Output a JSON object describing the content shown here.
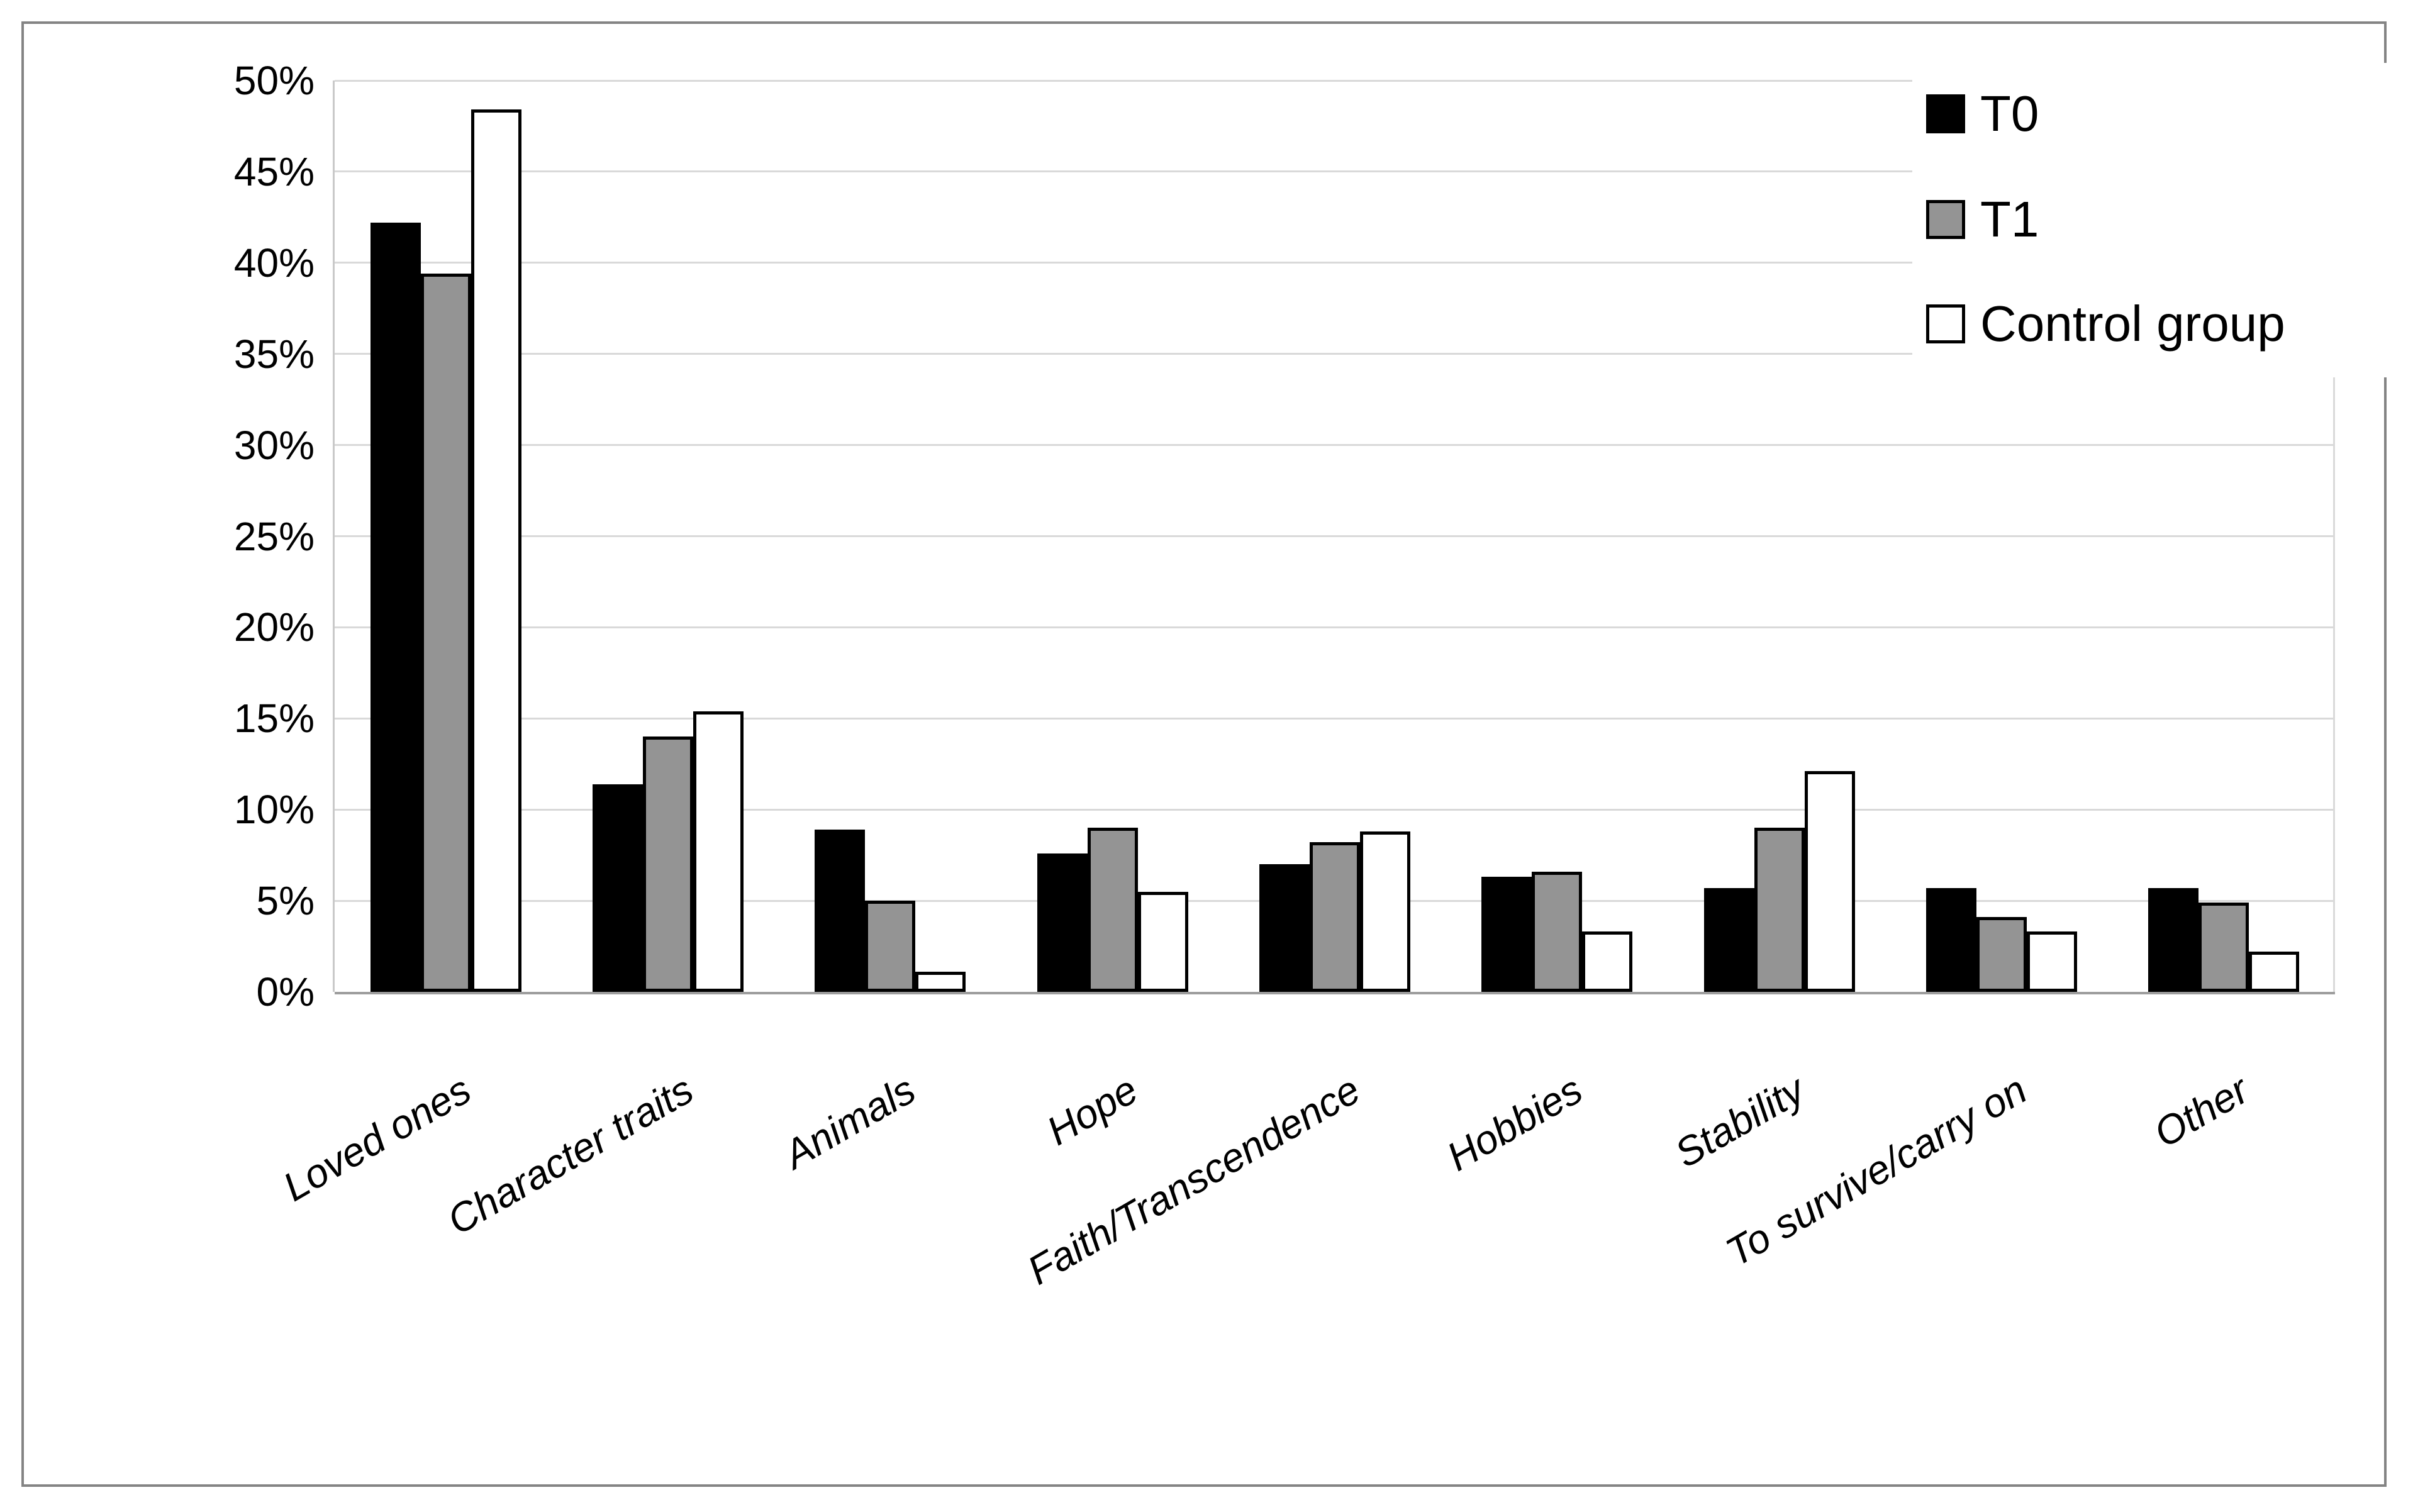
{
  "chart_data": {
    "type": "bar",
    "title": "",
    "xlabel": "",
    "ylabel": "",
    "categories": [
      "Loved ones",
      "Character traits",
      "Animals",
      "Hope",
      "Faith/Transcendence",
      "Hobbies",
      "Stability",
      "To survive/carry on",
      "Other"
    ],
    "series": [
      {
        "name": "T0",
        "color": "#000000",
        "values": [
          42.2,
          11.4,
          8.9,
          7.6,
          7.0,
          6.3,
          5.7,
          5.7,
          5.7
        ]
      },
      {
        "name": "T1",
        "color": "#949494",
        "values": [
          39.4,
          14.0,
          5.0,
          9.0,
          8.2,
          6.6,
          9.0,
          4.1,
          4.9
        ]
      },
      {
        "name": "Control group",
        "color": "#ffffff",
        "values": [
          48.4,
          15.4,
          1.1,
          5.5,
          8.8,
          3.3,
          12.1,
          3.3,
          2.2
        ]
      }
    ],
    "ylim": [
      0,
      50
    ],
    "ytick_step": 5,
    "ytick_labels": [
      "0%",
      "5%",
      "10%",
      "15%",
      "20%",
      "25%",
      "30%",
      "35%",
      "40%",
      "45%",
      "50%"
    ],
    "grid": true,
    "legend_position": "top-right",
    "bar_outline_color": "#000000",
    "gridline_color": "#d9d9d9",
    "axis_line_color": "#9d9d9d"
  }
}
